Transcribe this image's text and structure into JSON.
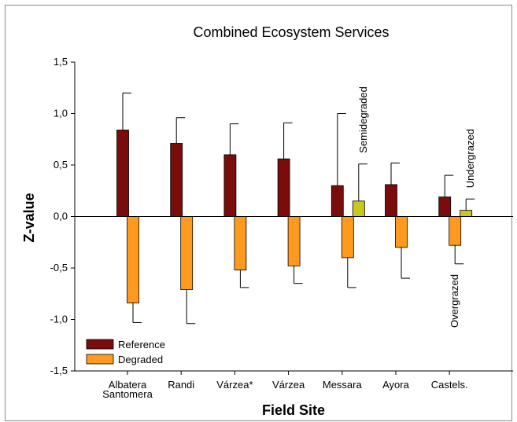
{
  "chart_data": {
    "type": "bar",
    "title": "Combined Ecosystem Services",
    "xlabel": "Field Site",
    "ylabel": "Z-value",
    "ylim": [
      -1.5,
      1.5
    ],
    "yticks": [
      "-1,5",
      "-1,0",
      "-0,5",
      "0,0",
      "0,5",
      "1,0",
      "1,5"
    ],
    "ytick_values": [
      -1.5,
      -1.0,
      -0.5,
      0.0,
      0.5,
      1.0,
      1.5
    ],
    "categories": [
      {
        "label": "Albatera",
        "label2": "Santomera"
      },
      {
        "label": "Randi",
        "label2": ""
      },
      {
        "label": "Várzea*",
        "label2": ""
      },
      {
        "label": "Várzea",
        "label2": ""
      },
      {
        "label": "Messara",
        "label2": ""
      },
      {
        "label": "Ayora",
        "label2": ""
      },
      {
        "label": "Castels.",
        "label2": ""
      }
    ],
    "series": [
      {
        "name": "Reference",
        "color": "#7b0c0c",
        "values": [
          0.84,
          0.71,
          0.6,
          0.56,
          0.3,
          0.31,
          0.19
        ],
        "errors": [
          0.36,
          0.25,
          0.3,
          0.35,
          0.7,
          0.21,
          0.21
        ]
      },
      {
        "name": "Degraded",
        "color": "#ff9a1f",
        "values": [
          -0.84,
          -0.71,
          -0.52,
          -0.48,
          -0.4,
          -0.3,
          -0.28
        ],
        "errors": [
          0.19,
          0.33,
          0.17,
          0.17,
          0.29,
          0.3,
          0.18
        ]
      }
    ],
    "extra_bars": [
      {
        "category_index": 4,
        "value": 0.15,
        "error": 0.36,
        "color": "#c8c81e",
        "label": "Semidegraded",
        "label_orientation": "vertical-up"
      },
      {
        "category_index": 6,
        "value": 0.06,
        "error": 0.11,
        "color": "#c8c81e",
        "label": "Undergrazed",
        "label_orientation": "vertical-up"
      }
    ],
    "annotations": [
      {
        "text": "Overgrazed",
        "category_index": 6,
        "series": "Degraded"
      }
    ],
    "legend": {
      "placement": "bottom-left",
      "entries": [
        {
          "label": "Reference",
          "color": "#7b0c0c"
        },
        {
          "label": "Degraded",
          "color": "#ff9a1f"
        }
      ]
    },
    "grid": false
  }
}
